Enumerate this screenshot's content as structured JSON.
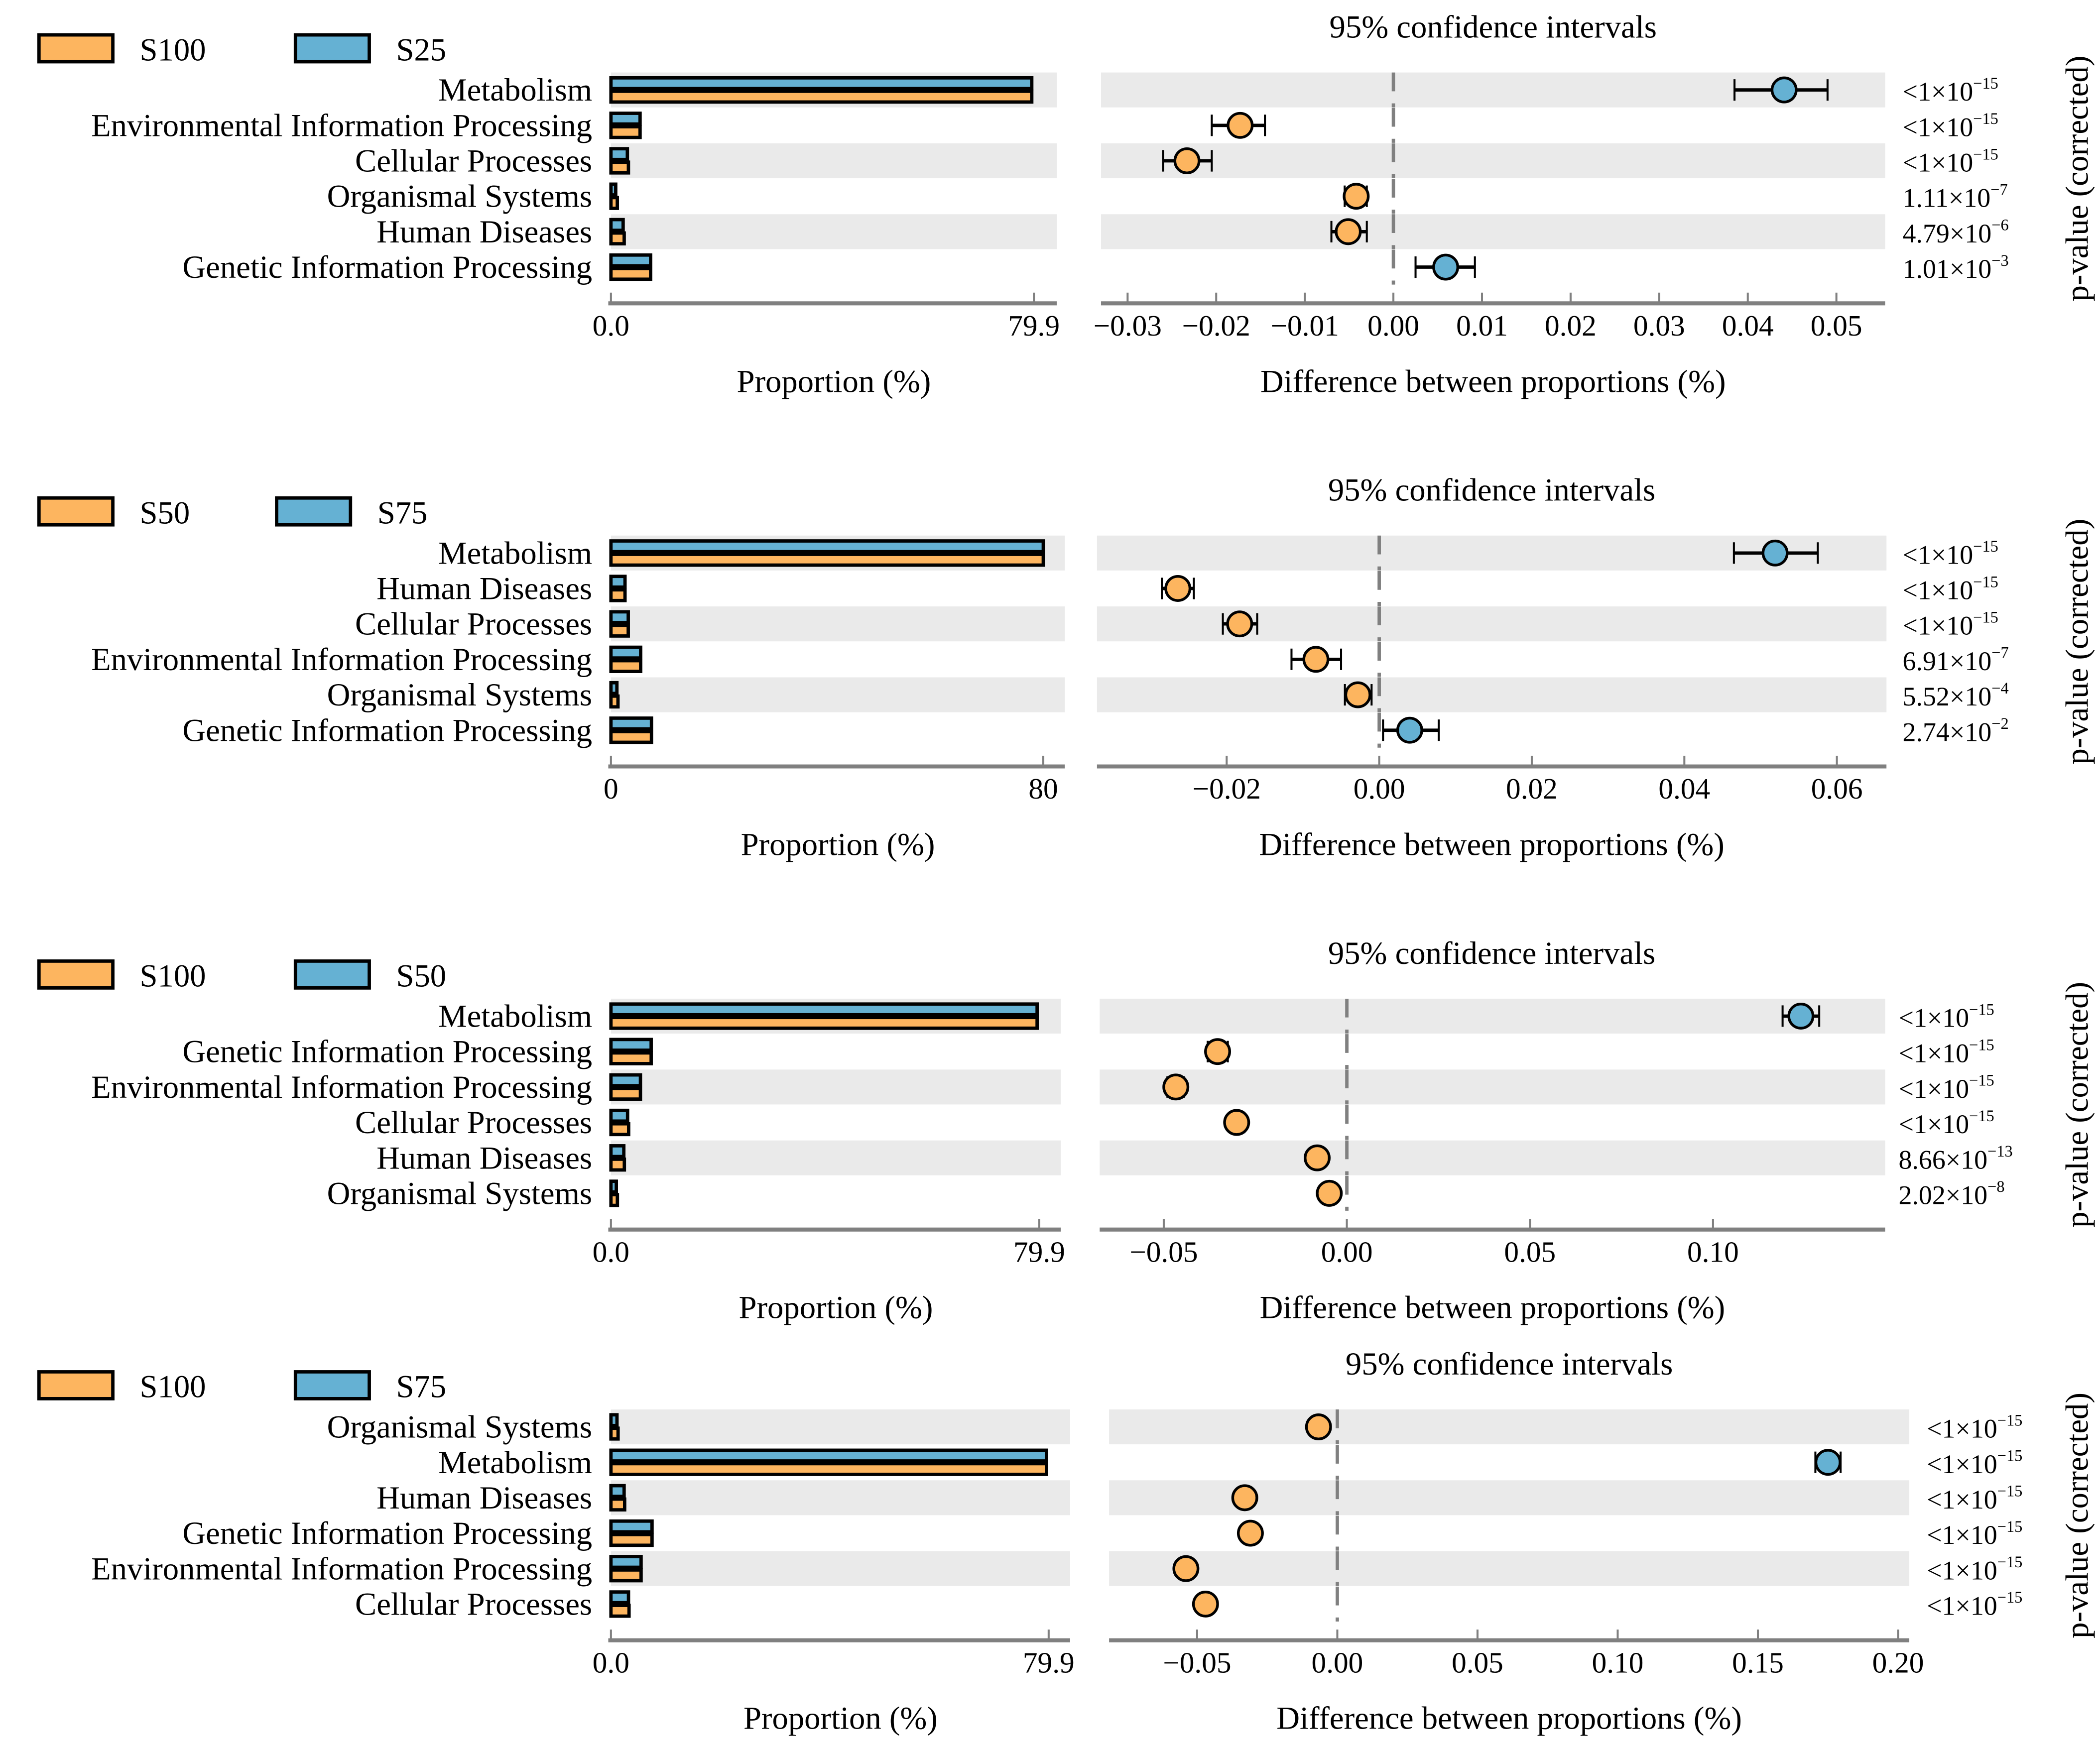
{
  "colors": {
    "group1": "#FDB55F",
    "group2": "#65B1D3",
    "band": "#EAEAEA",
    "axis": "#808080"
  },
  "chart_data": [
    {
      "type": "bar+errorbar",
      "groups": [
        "S100",
        "S25"
      ],
      "title": "95% confidence intervals",
      "bar_xlabel": "Proportion (%)",
      "ci_xlabel": "Difference between proportions (%)",
      "pvalue_label": "p-value (corrected)",
      "bar_ticks": [
        "0.0",
        "79.9"
      ],
      "bar_max": 79.9,
      "ci_ticks": [
        -0.03,
        -0.02,
        -0.01,
        0.0,
        0.01,
        0.02,
        0.03,
        0.04,
        0.05
      ],
      "ci_tick_labels": [
        "−0.03",
        "−0.02",
        "−0.01",
        "0.00",
        "0.01",
        "0.02",
        "0.03",
        "0.04",
        "0.05"
      ],
      "ci_xlim": [
        -0.033,
        0.0555
      ],
      "categories": [
        "Metabolism",
        "Environmental Information Processing",
        "Cellular Processes",
        "Organismal Systems",
        "Human Diseases",
        "Genetic Information Processing"
      ],
      "values_g1": [
        79.5,
        5.5,
        3.3,
        1.2,
        2.5,
        7.5
      ],
      "values_g2": [
        79.5,
        5.5,
        3.1,
        0.9,
        2.3,
        7.5
      ],
      "diff": [
        0.0441,
        -0.0173,
        -0.0233,
        -0.0042,
        -0.0051,
        0.0059
      ],
      "ci_low": [
        0.0385,
        -0.0205,
        -0.026,
        -0.0055,
        -0.007,
        0.0025
      ],
      "ci_high": [
        0.049,
        -0.0145,
        -0.0205,
        -0.003,
        -0.003,
        0.0092
      ],
      "pvalues": [
        [
          "<1×10",
          "-15"
        ],
        [
          "<1×10",
          "-15"
        ],
        [
          "<1×10",
          "-15"
        ],
        [
          "1.11×10",
          "-7"
        ],
        [
          "4.79×10",
          "-6"
        ],
        [
          "1.01×10",
          "-3"
        ]
      ]
    },
    {
      "type": "bar+errorbar",
      "groups": [
        "S50",
        "S75"
      ],
      "title": "95% confidence intervals",
      "bar_xlabel": "Proportion (%)",
      "ci_xlabel": "Difference between proportions (%)",
      "pvalue_label": "p-value (corrected)",
      "bar_ticks": [
        "0",
        "80"
      ],
      "bar_max": 80,
      "ci_ticks": [
        -0.02,
        0.0,
        0.02,
        0.04,
        0.06
      ],
      "ci_tick_labels": [
        "−0.02",
        "0.00",
        "0.02",
        "0.04",
        "0.06"
      ],
      "ci_xlim": [
        -0.037,
        0.0665
      ],
      "categories": [
        "Metabolism",
        "Human Diseases",
        "Cellular Processes",
        "Environmental Information Processing",
        "Organismal Systems",
        "Genetic Information Processing"
      ],
      "values_g1": [
        80,
        2.6,
        3.2,
        5.5,
        1.3,
        7.5
      ],
      "values_g2": [
        80,
        2.6,
        3.2,
        5.5,
        1.1,
        7.5
      ],
      "diff": [
        0.0519,
        -0.0264,
        -0.0183,
        -0.0083,
        -0.0028,
        0.004
      ],
      "ci_low": [
        0.0465,
        -0.0285,
        -0.0205,
        -0.0115,
        -0.0045,
        0.0005
      ],
      "ci_high": [
        0.0575,
        -0.0243,
        -0.016,
        -0.005,
        -0.001,
        0.0078
      ],
      "pvalues": [
        [
          "<1×10",
          "-15"
        ],
        [
          "<1×10",
          "-15"
        ],
        [
          "<1×10",
          "-15"
        ],
        [
          "6.91×10",
          "-7"
        ],
        [
          "5.52×10",
          "-4"
        ],
        [
          "2.74×10",
          "-2"
        ]
      ]
    },
    {
      "type": "bar+errorbar",
      "groups": [
        "S100",
        "S50"
      ],
      "title": "95% confidence intervals",
      "bar_xlabel": "Proportion (%)",
      "ci_xlabel": "Difference between proportions (%)",
      "pvalue_label": "p-value (corrected)",
      "bar_ticks": [
        "0.0",
        "79.9"
      ],
      "bar_max": 79.9,
      "ci_ticks": [
        -0.05,
        0.0,
        0.05,
        0.1
      ],
      "ci_tick_labels": [
        "−0.05",
        "0.00",
        "0.05",
        "0.10"
      ],
      "ci_xlim": [
        -0.0675,
        0.147
      ],
      "categories": [
        "Metabolism",
        "Genetic Information Processing",
        "Environmental Information Processing",
        "Cellular Processes",
        "Human Diseases",
        "Organismal Systems"
      ],
      "values_g1": [
        79.5,
        7.5,
        5.5,
        3.3,
        2.5,
        1.2
      ],
      "values_g2": [
        79.5,
        7.5,
        5.5,
        3.1,
        2.4,
        1.0
      ],
      "diff": [
        0.124,
        -0.0353,
        -0.0467,
        -0.0301,
        -0.0081,
        -0.0048
      ],
      "ci_low": [
        0.119,
        -0.038,
        -0.049,
        -0.032,
        -0.0095,
        -0.006
      ],
      "ci_high": [
        0.129,
        -0.0325,
        -0.0445,
        -0.028,
        -0.0065,
        -0.0035
      ],
      "pvalues": [
        [
          "<1×10",
          "-15"
        ],
        [
          "<1×10",
          "-15"
        ],
        [
          "<1×10",
          "-15"
        ],
        [
          "<1×10",
          "-15"
        ],
        [
          "8.66×10",
          "-13"
        ],
        [
          "2.02×10",
          "-8"
        ]
      ]
    },
    {
      "type": "bar+errorbar",
      "groups": [
        "S100",
        "S75"
      ],
      "title": "95% confidence intervals",
      "bar_xlabel": "Proportion (%)",
      "ci_xlabel": "Difference between proportions (%)",
      "pvalue_label": "p-value (corrected)",
      "bar_ticks": [
        "0.0",
        "79.9"
      ],
      "bar_max": 79.9,
      "ci_ticks": [
        -0.05,
        0.0,
        0.05,
        0.1,
        0.15,
        0.2
      ],
      "ci_tick_labels": [
        "−0.05",
        "0.00",
        "0.05",
        "0.10",
        "0.15",
        "0.20"
      ],
      "ci_xlim": [
        -0.0814,
        0.204
      ],
      "categories": [
        "Organismal Systems",
        "Metabolism",
        "Human Diseases",
        "Genetic Information Processing",
        "Environmental Information Processing",
        "Cellular Processes"
      ],
      "values_g1": [
        1.3,
        79.5,
        2.5,
        7.5,
        5.5,
        3.3
      ],
      "values_g2": [
        1.1,
        79.5,
        2.4,
        7.5,
        5.5,
        3.2
      ],
      "diff": [
        -0.0067,
        0.175,
        -0.033,
        -0.031,
        -0.054,
        -0.047
      ],
      "ci_low": [
        -0.008,
        0.1705,
        -0.035,
        -0.0335,
        -0.056,
        -0.049
      ],
      "ci_high": [
        -0.005,
        0.1795,
        -0.031,
        -0.0285,
        -0.052,
        -0.045
      ],
      "pvalues": [
        [
          "<1×10",
          "-15"
        ],
        [
          "<1×10",
          "-15"
        ],
        [
          "<1×10",
          "-15"
        ],
        [
          "<1×10",
          "-15"
        ],
        [
          "<1×10",
          "-15"
        ],
        [
          "<1×10",
          "-15"
        ]
      ]
    }
  ]
}
